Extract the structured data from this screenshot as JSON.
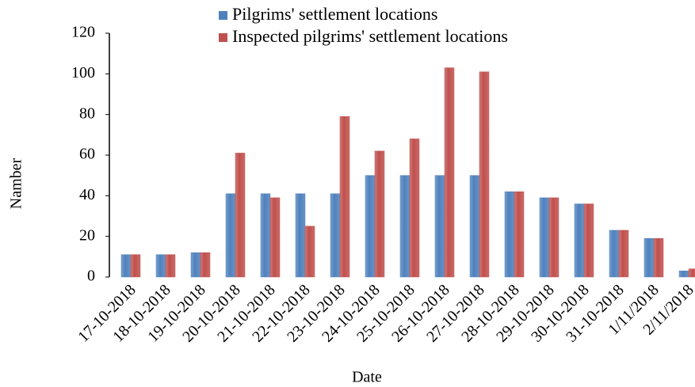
{
  "chart_data": {
    "type": "bar",
    "x_label": "Date",
    "y_label": "Namber",
    "categories": [
      "17-10-2018",
      "18-10-2018",
      "19-10-2018",
      "20-10-2018",
      "21-10-2018",
      "22-10-2018",
      "23-10-2018",
      "24-10-2018",
      "25-10-2018",
      "26-10-2018",
      "27-10-2018",
      "28-10-2018",
      "29-10-2018",
      "30-10-2018",
      "31-10-2018",
      "1/11/2018",
      "2/11/2018"
    ],
    "series": [
      {
        "name": "Pilgrims' settlement locations",
        "color": "#4f81bd",
        "values": [
          11,
          11,
          12,
          41,
          41,
          41,
          41,
          50,
          50,
          50,
          50,
          42,
          39,
          36,
          23,
          19,
          3
        ]
      },
      {
        "name": "Inspected pilgrims' settlement locations",
        "color": "#c0504d",
        "values": [
          11,
          11,
          12,
          61,
          39,
          25,
          79,
          62,
          68,
          103,
          101,
          42,
          39,
          36,
          23,
          19,
          4
        ]
      }
    ],
    "ylim": [
      0,
      120
    ],
    "yticks": [
      0,
      20,
      40,
      60,
      80,
      100,
      120
    ],
    "grid": false,
    "legend": "top"
  }
}
